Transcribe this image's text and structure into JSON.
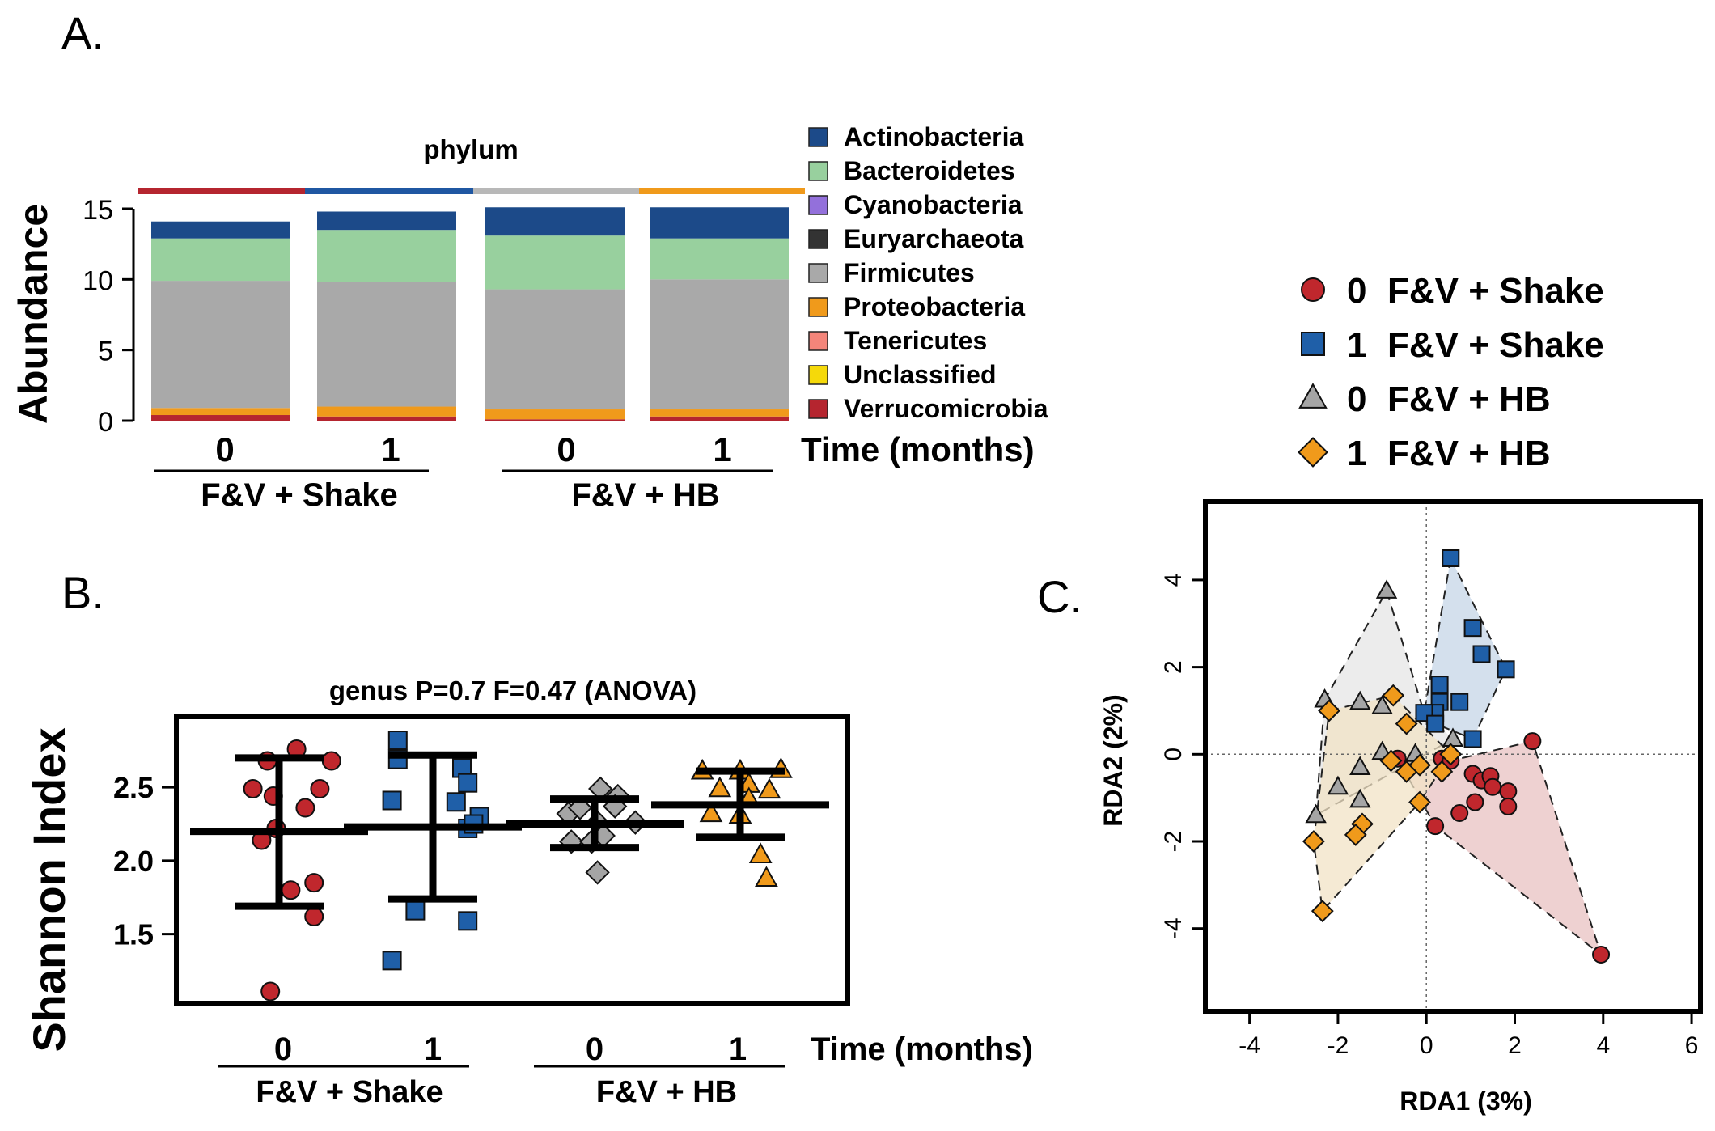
{
  "figure_labels": {
    "a": "A.",
    "b": "B.",
    "c": "C."
  },
  "chart_data": [
    {
      "panel": "A",
      "type": "bar",
      "stacked": true,
      "title": "phylum",
      "ylabel": "Abundance",
      "xlabel": "Time (months)",
      "ylim": [
        0,
        15
      ],
      "yticks": [
        "0",
        "5",
        "10",
        "15"
      ],
      "categories": [
        "0",
        "1",
        "0",
        "1"
      ],
      "groups": [
        "F&V + Shake",
        "F&V + HB"
      ],
      "group_strip_colors": [
        "#b5252f",
        "#1f57a2",
        "#b8b8b8",
        "#f09a1b"
      ],
      "series": [
        {
          "name": "Verrucomicrobia",
          "color": "#b5252f",
          "values": [
            0.4,
            0.3,
            0.1,
            0.3
          ]
        },
        {
          "name": "Unclassified",
          "color": "#f5d90a",
          "values": [
            0.0,
            0.0,
            0.0,
            0.0
          ]
        },
        {
          "name": "Tenericutes",
          "color": "#f4857a",
          "values": [
            0.0,
            0.0,
            0.0,
            0.0
          ]
        },
        {
          "name": "Proteobacteria",
          "color": "#f09a1b",
          "values": [
            0.5,
            0.7,
            0.7,
            0.5
          ]
        },
        {
          "name": "Firmicutes",
          "color": "#a9a9a9",
          "values": [
            9.0,
            8.8,
            8.5,
            9.2
          ]
        },
        {
          "name": "Euryarchaeota",
          "color": "#333333",
          "values": [
            0.0,
            0.0,
            0.0,
            0.0
          ]
        },
        {
          "name": "Cyanobacteria",
          "color": "#9370db",
          "values": [
            0.0,
            0.0,
            0.0,
            0.0
          ]
        },
        {
          "name": "Bacteroidetes",
          "color": "#98d09e",
          "values": [
            3.0,
            3.7,
            3.8,
            2.9
          ]
        },
        {
          "name": "Actinobacteria",
          "color": "#1c4a89",
          "values": [
            1.2,
            1.3,
            2.0,
            2.2
          ]
        }
      ],
      "legend": [
        "Actinobacteria",
        "Bacteroidetes",
        "Cyanobacteria",
        "Euryarchaeota",
        "Firmicutes",
        "Proteobacteria",
        "Tenericutes",
        "Unclassified",
        "Verrucomicrobia"
      ]
    },
    {
      "panel": "B",
      "type": "scatter",
      "title": "genus P=0.7 F=0.47 (ANOVA)",
      "ylabel": "Shannon Index",
      "xlabel": "Time (months)",
      "ylim": [
        1.03,
        2.98
      ],
      "yticks": [
        "1.5",
        "2.0",
        "2.5"
      ],
      "categories": [
        "0",
        "1",
        "0",
        "1"
      ],
      "groups": [
        "F&V + Shake",
        "F&V + HB"
      ],
      "series": [
        {
          "name": "0 F&V + Shake",
          "marker": "circle",
          "color": "#c0272d",
          "x_offsets": [
            0.3,
            -0.2,
            0.9,
            -0.1,
            0.7,
            -0.45,
            0.45,
            -0.3,
            0.6,
            0.2,
            0.6,
            -0.15,
            -0.05
          ],
          "values": [
            2.76,
            2.68,
            2.68,
            2.44,
            2.49,
            2.49,
            2.36,
            2.14,
            1.85,
            1.8,
            1.62,
            1.11,
            2.22
          ],
          "mean": 2.2,
          "sd_upper": 2.7,
          "sd_lower": 1.69
        },
        {
          "name": "1 F&V + Shake",
          "marker": "square",
          "color": "#1f5fa8",
          "x_offsets": [
            -0.6,
            -0.6,
            0.5,
            -0.7,
            0.6,
            0.4,
            0.8,
            0.6,
            0.7,
            -0.3,
            0.6,
            -0.7
          ],
          "values": [
            2.82,
            2.69,
            2.63,
            2.41,
            2.53,
            2.4,
            2.3,
            2.22,
            2.25,
            1.66,
            1.59,
            1.32
          ],
          "mean": 2.23,
          "sd_upper": 2.72,
          "sd_lower": 1.74
        },
        {
          "name": "0 F&V + HB",
          "marker": "diamond",
          "color": "#a5a5a5",
          "x_offsets": [
            0.1,
            0.4,
            -0.45,
            -0.25,
            0.05,
            0.35,
            0.7,
            -0.4,
            -0.05,
            0.15,
            0.05
          ],
          "values": [
            2.49,
            2.44,
            2.32,
            2.36,
            2.26,
            2.37,
            2.26,
            2.13,
            2.13,
            2.17,
            1.92
          ],
          "mean": 2.25,
          "sd_upper": 2.42,
          "sd_lower": 2.09
        },
        {
          "name": "1 F&V + HB",
          "marker": "triangle",
          "color": "#f09a1b",
          "x_offsets": [
            -0.65,
            0.0,
            0.7,
            0.15,
            0.5,
            -0.35,
            0.15,
            -0.5,
            0.0,
            0.35,
            0.45
          ],
          "values": [
            2.61,
            2.61,
            2.62,
            2.52,
            2.48,
            2.49,
            2.42,
            2.32,
            2.31,
            2.04,
            1.88
          ],
          "mean": 2.38,
          "sd_upper": 2.61,
          "sd_lower": 2.16
        }
      ]
    },
    {
      "panel": "C",
      "type": "scatter",
      "xlabel": "RDA1 (3%)",
      "ylabel": "RDA2 (2%)",
      "xlim": [
        -5,
        6.2
      ],
      "ylim": [
        -5.9,
        5.8
      ],
      "xticks": [
        -4,
        -2,
        0,
        2,
        4,
        6
      ],
      "yticks": [
        -4,
        -2,
        0,
        2,
        4
      ],
      "legend": [
        {
          "marker": "circle",
          "num": "0",
          "label": "F&V + Shake"
        },
        {
          "marker": "square",
          "num": "1",
          "label": "F&V + Shake"
        },
        {
          "marker": "triangle",
          "num": "0",
          "label": "F&V  + HB"
        },
        {
          "marker": "diamond",
          "num": "1",
          "label": "F&V  + HB"
        }
      ],
      "series": [
        {
          "name": "0 F&V + Shake",
          "marker": "circle",
          "color": "#c0272d",
          "hull_fill": "#e8c2c2",
          "points": [
            [
              -0.65,
              -0.1
            ],
            [
              0.35,
              -0.1
            ],
            [
              0.55,
              -0.15
            ],
            [
              1.05,
              -0.45
            ],
            [
              1.25,
              -0.6
            ],
            [
              1.45,
              -0.5
            ],
            [
              1.5,
              -0.75
            ],
            [
              1.85,
              -0.85
            ],
            [
              1.85,
              -1.2
            ],
            [
              1.1,
              -1.1
            ],
            [
              0.75,
              -1.35
            ],
            [
              0.2,
              -1.65
            ],
            [
              2.4,
              0.3
            ],
            [
              3.95,
              -4.6
            ]
          ],
          "hull": [
            [
              -0.65,
              -0.1
            ],
            [
              0.55,
              -0.15
            ],
            [
              2.4,
              0.3
            ],
            [
              3.95,
              -4.6
            ],
            [
              0.2,
              -1.65
            ]
          ]
        },
        {
          "name": "1 F&V + Shake",
          "marker": "square",
          "color": "#1f5fa8",
          "hull_fill": "#c6d6e7",
          "points": [
            [
              0.55,
              4.5
            ],
            [
              1.05,
              2.9
            ],
            [
              1.25,
              2.3
            ],
            [
              1.8,
              1.95
            ],
            [
              0.3,
              1.6
            ],
            [
              0.3,
              1.2
            ],
            [
              0.75,
              1.2
            ],
            [
              0.2,
              0.95
            ],
            [
              -0.05,
              0.95
            ],
            [
              0.2,
              0.7
            ],
            [
              1.05,
              0.35
            ]
          ],
          "hull": [
            [
              0.55,
              4.5
            ],
            [
              1.8,
              1.95
            ],
            [
              1.05,
              0.35
            ],
            [
              0.2,
              0.7
            ],
            [
              -0.05,
              0.95
            ]
          ]
        },
        {
          "name": "0 F&V + HB",
          "marker": "triangle",
          "color": "#a5a5a5",
          "hull_fill": "#e6e6e6",
          "points": [
            [
              -0.9,
              3.75
            ],
            [
              -2.3,
              1.25
            ],
            [
              -1.5,
              1.2
            ],
            [
              -1.0,
              1.1
            ],
            [
              -0.25,
              0.0
            ],
            [
              -1.0,
              0.05
            ],
            [
              -1.5,
              -0.3
            ],
            [
              -2.0,
              -0.75
            ],
            [
              -1.5,
              -1.05
            ],
            [
              -2.5,
              -1.4
            ],
            [
              0.6,
              0.35
            ]
          ],
          "hull": [
            [
              -0.9,
              3.75
            ],
            [
              -0.05,
              0.95
            ],
            [
              0.6,
              0.35
            ],
            [
              -2.5,
              -1.4
            ],
            [
              -2.3,
              1.25
            ]
          ]
        },
        {
          "name": "1 F&V + HB",
          "marker": "diamond",
          "color": "#f09a1b",
          "hull_fill": "#f1e3c6",
          "points": [
            [
              -0.75,
              1.35
            ],
            [
              -0.45,
              0.7
            ],
            [
              -2.2,
              1.0
            ],
            [
              -0.8,
              -0.15
            ],
            [
              -0.45,
              -0.4
            ],
            [
              -0.15,
              -0.25
            ],
            [
              0.55,
              0.0
            ],
            [
              0.35,
              -0.4
            ],
            [
              -0.15,
              -1.1
            ],
            [
              -1.45,
              -1.6
            ],
            [
              -1.6,
              -1.85
            ],
            [
              -2.55,
              -2.0
            ],
            [
              -2.35,
              -3.6
            ]
          ],
          "hull": [
            [
              -2.2,
              1.0
            ],
            [
              -0.75,
              1.35
            ],
            [
              0.55,
              0.0
            ],
            [
              -0.15,
              -1.1
            ],
            [
              -2.35,
              -3.6
            ],
            [
              -2.55,
              -2.0
            ]
          ]
        }
      ]
    }
  ]
}
